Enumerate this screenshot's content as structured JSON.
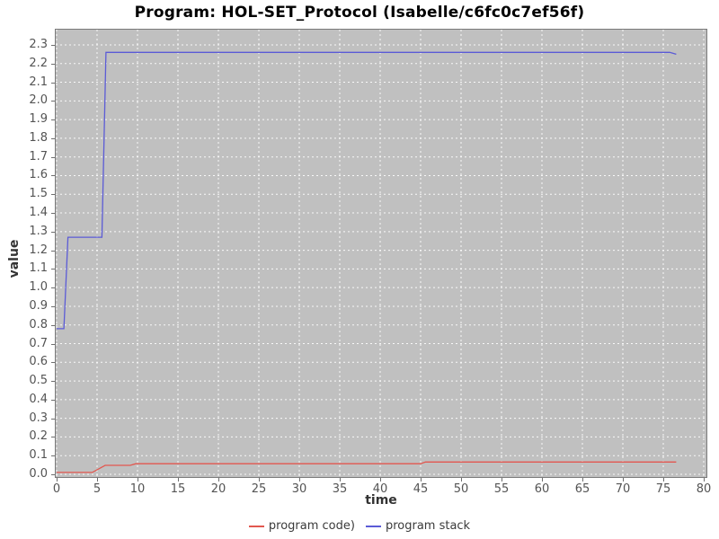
{
  "chart_data": {
    "type": "line",
    "title": "Program: HOL-SET_Protocol (Isabelle/c6fc0c7ef56f)",
    "xlabel": "time",
    "ylabel": "value",
    "xlim": [
      0,
      80
    ],
    "ylim": [
      0,
      2.3
    ],
    "grid": true,
    "grid_color": "#ffffff",
    "plot_background": "#c0c0c0",
    "legend_position": "bottom",
    "x_ticks": [
      "0",
      "5",
      "10",
      "15",
      "20",
      "25",
      "30",
      "35",
      "40",
      "45",
      "50",
      "55",
      "60",
      "65",
      "70",
      "75",
      "80"
    ],
    "y_ticks": [
      "0.0",
      "0.1",
      "0.2",
      "0.3",
      "0.4",
      "0.5",
      "0.6",
      "0.7",
      "0.8",
      "0.9",
      "1.0",
      "1.1",
      "1.2",
      "1.3",
      "1.4",
      "1.5",
      "1.6",
      "1.7",
      "1.8",
      "1.9",
      "2.0",
      "2.1",
      "2.2",
      "2.3"
    ],
    "series": [
      {
        "name": "program code)",
        "color": "#e2574f",
        "points": [
          [
            0,
            0.01
          ],
          [
            4.4,
            0.01
          ],
          [
            6.0,
            0.048
          ],
          [
            9.1,
            0.048
          ],
          [
            9.8,
            0.057
          ],
          [
            45.0,
            0.057
          ],
          [
            45.6,
            0.066
          ],
          [
            76.6,
            0.066
          ]
        ]
      },
      {
        "name": "program stack",
        "color": "#5b5bd6",
        "points": [
          [
            0,
            0.78
          ],
          [
            0.9,
            0.78
          ],
          [
            1.4,
            1.27
          ],
          [
            5.6,
            1.27
          ],
          [
            6.1,
            2.26
          ],
          [
            75.8,
            2.26
          ],
          [
            76.6,
            2.25
          ]
        ]
      }
    ]
  }
}
